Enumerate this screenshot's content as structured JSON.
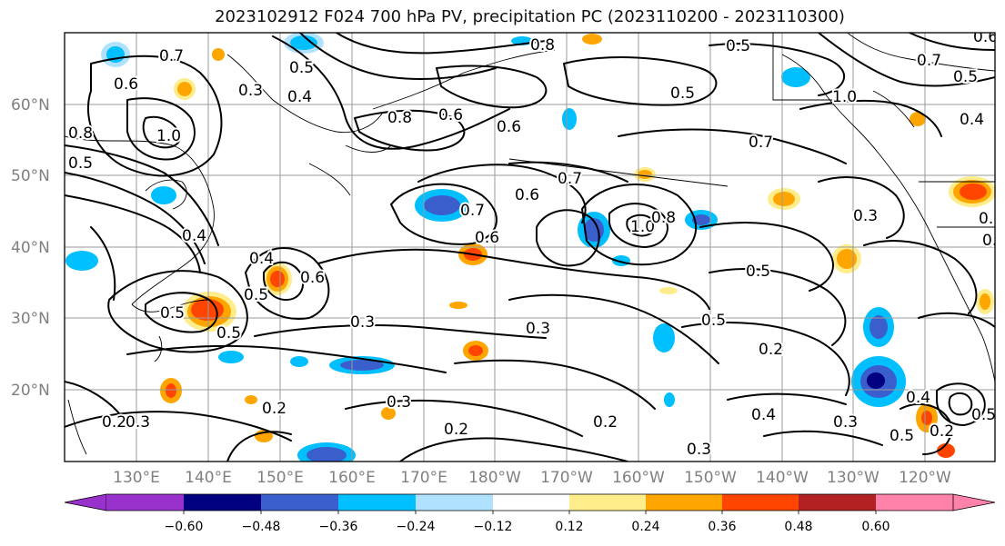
{
  "title": "2023102912 F024 700 hPa PV, precipitation PC (2023110200 - 2023110300)",
  "map": {
    "lat_labels": [
      "60°N",
      "50°N",
      "40°N",
      "30°N",
      "20°N"
    ],
    "lon_labels": [
      "130°E",
      "140°E",
      "150°E",
      "160°E",
      "170°E",
      "180°W",
      "170°W",
      "160°W",
      "150°W",
      "140°W",
      "130°W",
      "120°W"
    ],
    "contour_labels": [
      "0.7",
      "0.6",
      "1.0",
      "0.3",
      "0.4",
      "0.8",
      "0.5",
      "0.6",
      "0.8",
      "0.5",
      "0.7",
      "0.8",
      "0.5",
      "1.0",
      "0.5",
      "0.4",
      "0.7",
      "0.6",
      "0.7",
      "0.5",
      "0.6",
      "0.7",
      "1.0",
      "0.8",
      "0.5",
      "0.3",
      "0.4",
      "0.6",
      "0.5",
      "0.4",
      "0.5",
      "0.6",
      "0.5",
      "0.3",
      "0.3",
      "0.5",
      "0.2",
      "0.3",
      "0.2",
      "0.2",
      "0.3",
      "0.2",
      "0.3",
      "0.2",
      "0.4",
      "0.3",
      "0.5",
      "0.2",
      "0.5",
      "0.6",
      "0.3",
      "0.8",
      "0.4"
    ],
    "shading_colors": {
      "neg_extreme": "#9932cc",
      "neg_060": "#000080",
      "neg_048": "#3a5fcd",
      "neg_036": "#00bfff",
      "neg_024": "#b0e2ff",
      "neutral": "#ffffff",
      "pos_012": "#ffec8b",
      "pos_024": "#ffa500",
      "pos_036": "#ff4500",
      "pos_048": "#b22222",
      "pos_extreme": "#ff82ab"
    }
  },
  "colorbar": {
    "ticks": [
      "−0.60",
      "−0.48",
      "−0.36",
      "−0.24",
      "−0.12",
      "0.12",
      "0.24",
      "0.36",
      "0.48",
      "0.60"
    ],
    "bins": [
      "#9932cc",
      "#000080",
      "#3a5fcd",
      "#00bfff",
      "#b0e2ff",
      "#ffffff",
      "#ffec8b",
      "#ffa500",
      "#ff4500",
      "#b22222",
      "#ff82ab"
    ]
  }
}
